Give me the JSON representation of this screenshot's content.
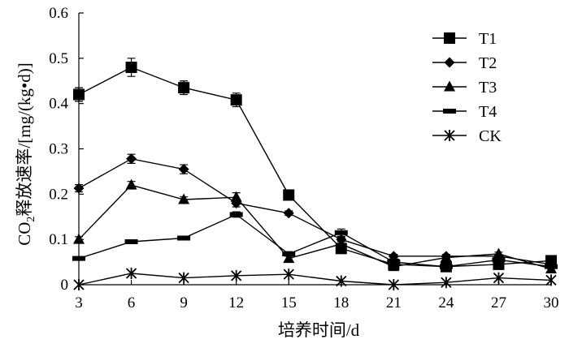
{
  "chart_data": {
    "type": "line",
    "xlabel": "培养时间/d",
    "ylabel": "CO2释放速率/[mg/(kg•d)]",
    "x": [
      3,
      6,
      9,
      12,
      15,
      18,
      21,
      24,
      27,
      30
    ],
    "xticks": [
      "3",
      "6",
      "9",
      "12",
      "15",
      "18",
      "21",
      "24",
      "27",
      "30"
    ],
    "yticks": [
      "0",
      "0.1",
      "0.2",
      "0.3",
      "0.4",
      "0.5",
      "0.6"
    ],
    "ylim": [
      0,
      0.6
    ],
    "grid": false,
    "legend_position": "top-right",
    "series": [
      {
        "name": "T1",
        "marker": "square",
        "values": [
          0.42,
          0.48,
          0.435,
          0.408,
          0.198,
          0.08,
          0.045,
          0.04,
          0.045,
          0.053
        ],
        "errors": [
          0.015,
          0.02,
          0.015,
          0.015,
          0.008,
          0.008,
          0.005,
          0.005,
          0.005,
          0.005
        ]
      },
      {
        "name": "T2",
        "marker": "diamond",
        "values": [
          0.213,
          0.278,
          0.255,
          0.18,
          0.158,
          0.1,
          0.063,
          0.063,
          0.063,
          0.045
        ],
        "errors": [
          0.008,
          0.01,
          0.01,
          0.008,
          0.005,
          0.005,
          0.004,
          0.004,
          0.004,
          0.004
        ]
      },
      {
        "name": "T3",
        "marker": "triangle",
        "values": [
          0.1,
          0.22,
          0.188,
          0.193,
          0.058,
          0.09,
          0.04,
          0.06,
          0.068,
          0.035
        ],
        "errors": [
          0.006,
          0.008,
          0.006,
          0.01,
          0.005,
          0.005,
          0.004,
          0.004,
          0.004,
          0.004
        ]
      },
      {
        "name": "T4",
        "marker": "dash",
        "values": [
          0.058,
          0.095,
          0.103,
          0.155,
          0.068,
          0.115,
          0.05,
          0.04,
          0.055,
          0.04
        ],
        "errors": [
          0.004,
          0.004,
          0.004,
          0.006,
          0.005,
          0.008,
          0.004,
          0.004,
          0.004,
          0.004
        ]
      },
      {
        "name": "CK",
        "marker": "star",
        "values": [
          0.0,
          0.025,
          0.015,
          0.02,
          0.023,
          0.008,
          0.0,
          0.005,
          0.015,
          0.01
        ],
        "errors": [
          0,
          0,
          0,
          0,
          0,
          0,
          0,
          0,
          0,
          0
        ]
      }
    ]
  }
}
